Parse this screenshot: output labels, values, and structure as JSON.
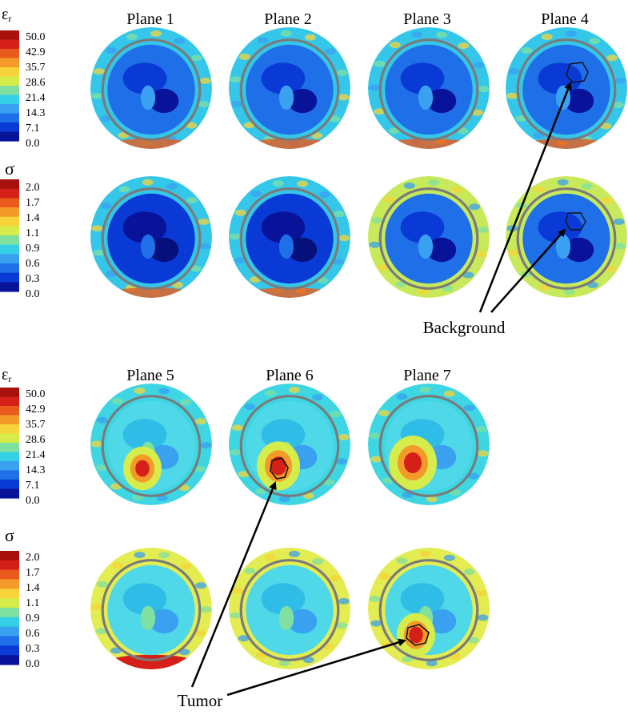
{
  "colors": {
    "scale": [
      "#08139a",
      "#0a3ad6",
      "#1f6fe8",
      "#3aa0f0",
      "#34d0e6",
      "#7fe0a0",
      "#d6ec4a",
      "#f6d43a",
      "#f49a2a",
      "#ea5a1c",
      "#d42018",
      "#a8100e"
    ],
    "contour_gray": "#7a7a7a",
    "roi_outline": "#111111",
    "text": "#000000"
  },
  "eps_scale": {
    "symbol": "ε",
    "subscript": "r",
    "ticks": [
      "50.0",
      "42.9",
      "35.7",
      "28.6",
      "21.4",
      "14.3",
      "7.1",
      "0.0"
    ]
  },
  "sigma_scale": {
    "symbol": "σ",
    "ticks": [
      "2.0",
      "1.7",
      "1.4",
      "1.1",
      "0.9",
      "0.6",
      "0.3",
      "0.0"
    ]
  },
  "top_planes": [
    "Plane 1",
    "Plane 2",
    "Plane 3",
    "Plane 4"
  ],
  "bottom_planes": [
    "Plane 5",
    "Plane 6",
    "Plane 7"
  ],
  "annotations": {
    "background": "Background",
    "tumor": "Tumor"
  }
}
